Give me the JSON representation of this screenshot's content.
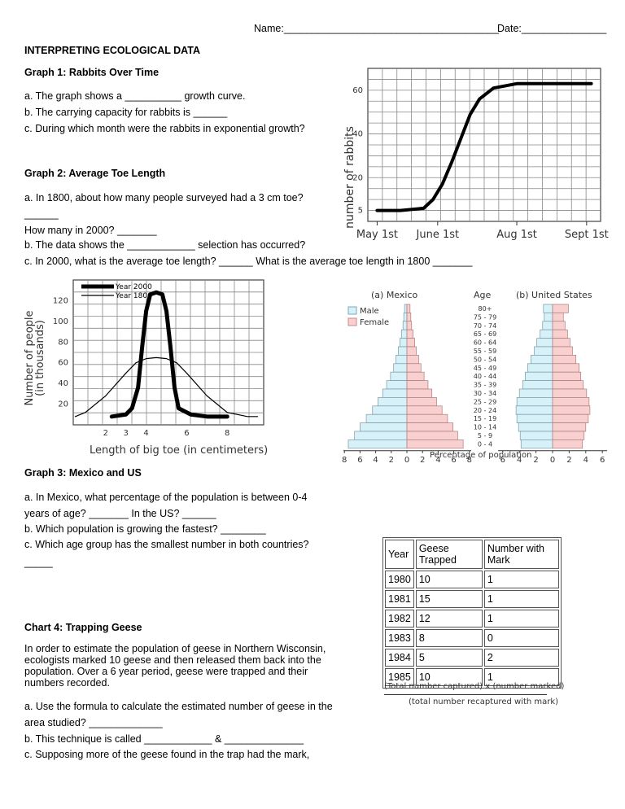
{
  "header": {
    "name_label": "Name:______________________________________",
    "date_label": "Date:_______________"
  },
  "title": "INTERPRETING ECOLOGICAL DATA",
  "graph1": {
    "heading": "Graph 1: Rabbits Over Time",
    "q_a": "a. The graph shows a __________ growth curve.",
    "q_b": "b. The carrying capacity for rabbits is ______",
    "q_c": "c. During which month were the rabbits in exponential growth?",
    "chart_data": {
      "type": "line",
      "ylabel": "number of rabbits",
      "xlabel": "",
      "x_tick_labels": [
        "May 1st",
        "June 1st",
        "Aug 1st",
        "Sept 1st"
      ],
      "y_tick_labels": [
        "5",
        "20",
        "40",
        "60"
      ],
      "grid": true,
      "series": [
        {
          "x": [
            0,
            0.5,
            1,
            1.2,
            1.4,
            1.6,
            1.8,
            2.0,
            2.2,
            2.5,
            3.0,
            3.5,
            4.0,
            4.6
          ],
          "y": [
            5,
            5,
            6,
            10,
            17,
            27,
            38,
            49,
            56,
            61,
            63,
            63,
            63,
            63
          ]
        }
      ]
    }
  },
  "graph2": {
    "heading": "Graph 2: Average Toe Length",
    "q_a1": "a. In 1800, about how many people surveyed had a 3 cm toe?",
    "q_a2": "______",
    "q_a3": "How many in 2000? _______",
    "q_b": "b. The data shows the ____________ selection has occurred?",
    "q_c": "c. In 2000, what is the average toe length? ______ What is the average toe length in 1800 _______",
    "chart_data": {
      "type": "line",
      "xlabel": "Length of big toe (in centimeters)",
      "ylabel": "Number of people (in thousands)",
      "x_tick_labels": [
        "2",
        "3",
        "4",
        "6",
        "8"
      ],
      "y_tick_labels": [
        "20",
        "40",
        "60",
        "80",
        "100",
        "120"
      ],
      "legend": [
        "Year 2000",
        "Year 1800"
      ],
      "grid": true,
      "series": [
        {
          "name": "Year 2000",
          "x": [
            2.3,
            3.0,
            3.3,
            3.6,
            3.8,
            4.0,
            4.2,
            4.5,
            4.8,
            5.0,
            5.2,
            5.4,
            5.6,
            6.2,
            7.0,
            8.0
          ],
          "y": [
            8,
            10,
            16,
            36,
            75,
            110,
            126,
            128,
            126,
            110,
            75,
            36,
            16,
            10,
            8,
            8
          ]
        },
        {
          "name": "Year 1800",
          "x": [
            0.5,
            1.0,
            2.0,
            3.0,
            3.5,
            4.0,
            4.5,
            5.0,
            5.5,
            6.0,
            7.0,
            8.0,
            9.0,
            9.5
          ],
          "y": [
            8,
            12,
            28,
            50,
            60,
            64,
            65,
            64,
            60,
            50,
            28,
            12,
            8,
            8
          ]
        }
      ]
    }
  },
  "graph3": {
    "heading": "Graph 3: Mexico and US",
    "q_a1": "a. In Mexico, what percentage of the population is between 0-4",
    "q_a2": "years of age? _______ In the US? ______",
    "q_b": "b. Which population is growing the fastest? ________",
    "q_c1": "c. Which age group has the smallest number in both countries?",
    "q_c2": "_____",
    "chart_data": {
      "type": "bar",
      "title_a": "(a)  Mexico",
      "title_age": "Age",
      "title_b": "(b)  United States",
      "xlabel": "Percentage of population",
      "legend": [
        "Male",
        "Female"
      ],
      "x_ticks_a": [
        "8",
        "6",
        "4",
        "2",
        "0",
        "2",
        "4",
        "6",
        "8"
      ],
      "x_ticks_b": [
        "6",
        "4",
        "2",
        "0",
        "2",
        "4",
        "6"
      ],
      "categories": [
        "80+",
        "75 - 79",
        "70 - 74",
        "65 - 69",
        "60 - 64",
        "55 - 59",
        "50 - 54",
        "45 - 49",
        "40 - 44",
        "35 - 39",
        "30 - 34",
        "25 - 29",
        "20 - 24",
        "15 - 19",
        "10 - 14",
        "5 - 9",
        "0 - 4"
      ],
      "mexico": {
        "male": [
          0.3,
          0.4,
          0.5,
          0.7,
          0.9,
          1.1,
          1.4,
          1.7,
          2.1,
          2.6,
          3.1,
          3.7,
          4.4,
          5.2,
          6.0,
          6.7,
          7.5
        ],
        "female": [
          0.4,
          0.5,
          0.6,
          0.8,
          1.0,
          1.2,
          1.5,
          1.8,
          2.2,
          2.7,
          3.2,
          3.8,
          4.5,
          5.2,
          5.9,
          6.5,
          7.2
        ]
      },
      "united_states": {
        "male": [
          1.1,
          1.0,
          1.2,
          1.5,
          1.9,
          2.2,
          2.6,
          3.0,
          3.3,
          3.6,
          4.0,
          4.3,
          4.4,
          4.3,
          4.1,
          3.9,
          3.8
        ],
        "female": [
          1.9,
          1.3,
          1.5,
          1.8,
          2.1,
          2.4,
          2.8,
          3.2,
          3.4,
          3.7,
          4.1,
          4.4,
          4.5,
          4.3,
          4.0,
          3.8,
          3.6
        ]
      },
      "colors": {
        "male": "#d6f1f8",
        "female": "#f8d0d0"
      }
    }
  },
  "chart4": {
    "heading": "Chart 4: Trapping Geese",
    "para1": "In order to estimate the population of geese in Northern Wisconsin,",
    "para2": "ecologists marked 10 geese and then released them back into the",
    "para3": "population. Over a 6 year period, geese were trapped and their",
    "para4": "numbers recorded.",
    "q_a1": "a. Use the formula to calculate the estimated number of geese in the",
    "q_a2": "area studied? _____________",
    "q_b": "b. This technique is called ____________ & ______________",
    "q_c": "c. Supposing more of the geese found in the trap had the mark,",
    "table": {
      "headers": [
        "Year",
        "Geese Trapped",
        "Number with Mark"
      ],
      "rows": [
        [
          "1980",
          "10",
          "1"
        ],
        [
          "1981",
          "15",
          "1"
        ],
        [
          "1982",
          "12",
          "1"
        ],
        [
          "1983",
          "8",
          "0"
        ],
        [
          "1984",
          "5",
          "2"
        ],
        [
          "1985",
          "10",
          "1"
        ]
      ]
    },
    "formula_numerator": "(Total number captured) x (number marked)",
    "formula_denominator": "(total number recaptured with mark)"
  }
}
